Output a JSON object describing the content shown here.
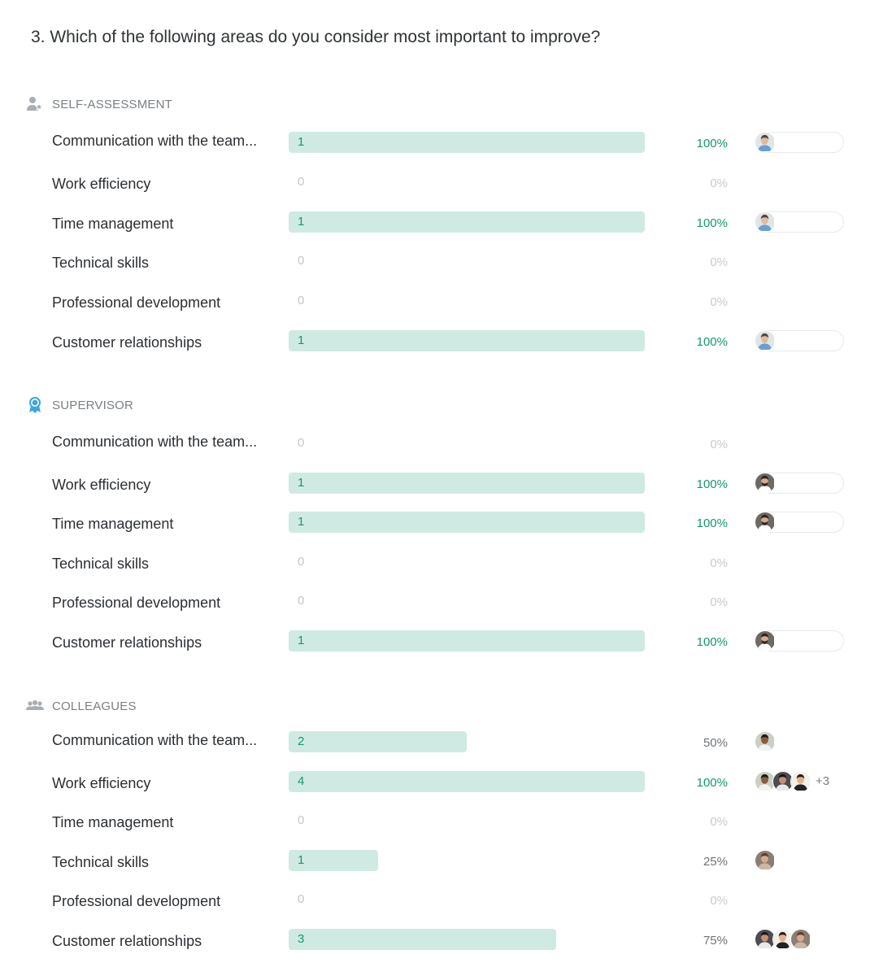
{
  "question": "3. Which of the following areas do you consider most important to improve?",
  "colors": {
    "accent": "#15976f",
    "bar": "#cfeae3",
    "muted": "#c7cbce",
    "supervisor_icon": "#3aa7e0"
  },
  "sections": [
    {
      "title": "SELF-ASSESSMENT",
      "icon": "person-star-icon",
      "rows": [
        {
          "label": "Communication with the team...",
          "count": "1",
          "percent": "100%",
          "fraction": 1.0,
          "avatars": [
            "blue-shirt-man"
          ],
          "more": ""
        },
        {
          "label": "Work efficiency",
          "count": "0",
          "percent": "0%",
          "fraction": 0,
          "avatars": [],
          "more": ""
        },
        {
          "label": "Time management",
          "count": "1",
          "percent": "100%",
          "fraction": 1.0,
          "avatars": [
            "blue-shirt-man"
          ],
          "more": ""
        },
        {
          "label": "Technical skills",
          "count": "0",
          "percent": "0%",
          "fraction": 0,
          "avatars": [],
          "more": ""
        },
        {
          "label": "Professional development",
          "count": "0",
          "percent": "0%",
          "fraction": 0,
          "avatars": [],
          "more": ""
        },
        {
          "label": "Customer relationships",
          "count": "1",
          "percent": "100%",
          "fraction": 1.0,
          "avatars": [
            "blue-shirt-man"
          ],
          "more": ""
        }
      ]
    },
    {
      "title": "SUPERVISOR",
      "icon": "award-ribbon-icon",
      "rows": [
        {
          "label": "Communication with the team...",
          "count": "0",
          "percent": "0%",
          "fraction": 0,
          "avatars": [],
          "more": ""
        },
        {
          "label": "Work efficiency",
          "count": "1",
          "percent": "100%",
          "fraction": 1.0,
          "avatars": [
            "bearded-man"
          ],
          "more": ""
        },
        {
          "label": "Time management",
          "count": "1",
          "percent": "100%",
          "fraction": 1.0,
          "avatars": [
            "bearded-man"
          ],
          "more": ""
        },
        {
          "label": "Technical skills",
          "count": "0",
          "percent": "0%",
          "fraction": 0,
          "avatars": [],
          "more": ""
        },
        {
          "label": "Professional development",
          "count": "0",
          "percent": "0%",
          "fraction": 0,
          "avatars": [],
          "more": ""
        },
        {
          "label": "Customer relationships",
          "count": "1",
          "percent": "100%",
          "fraction": 1.0,
          "avatars": [
            "bearded-man"
          ],
          "more": ""
        }
      ]
    },
    {
      "title": "COLLEAGUES",
      "icon": "group-icon",
      "rows": [
        {
          "label": "Communication with the team...",
          "count": "2",
          "percent": "50%",
          "fraction": 0.5,
          "avatars": [
            "smiling-man"
          ],
          "more": ""
        },
        {
          "label": "Work efficiency",
          "count": "4",
          "percent": "100%",
          "fraction": 1.0,
          "avatars": [
            "smiling-man",
            "dark-hair-woman",
            "long-hair-woman"
          ],
          "more": "+3"
        },
        {
          "label": "Time management",
          "count": "0",
          "percent": "0%",
          "fraction": 0,
          "avatars": [],
          "more": ""
        },
        {
          "label": "Technical skills",
          "count": "1",
          "percent": "25%",
          "fraction": 0.25,
          "avatars": [
            "curly-hair-woman"
          ],
          "more": ""
        },
        {
          "label": "Professional development",
          "count": "0",
          "percent": "0%",
          "fraction": 0,
          "avatars": [],
          "more": ""
        },
        {
          "label": "Customer relationships",
          "count": "3",
          "percent": "75%",
          "fraction": 0.75,
          "avatars": [
            "dark-hair-woman",
            "long-hair-woman",
            "curly-hair-woman"
          ],
          "more": ""
        }
      ]
    }
  ]
}
